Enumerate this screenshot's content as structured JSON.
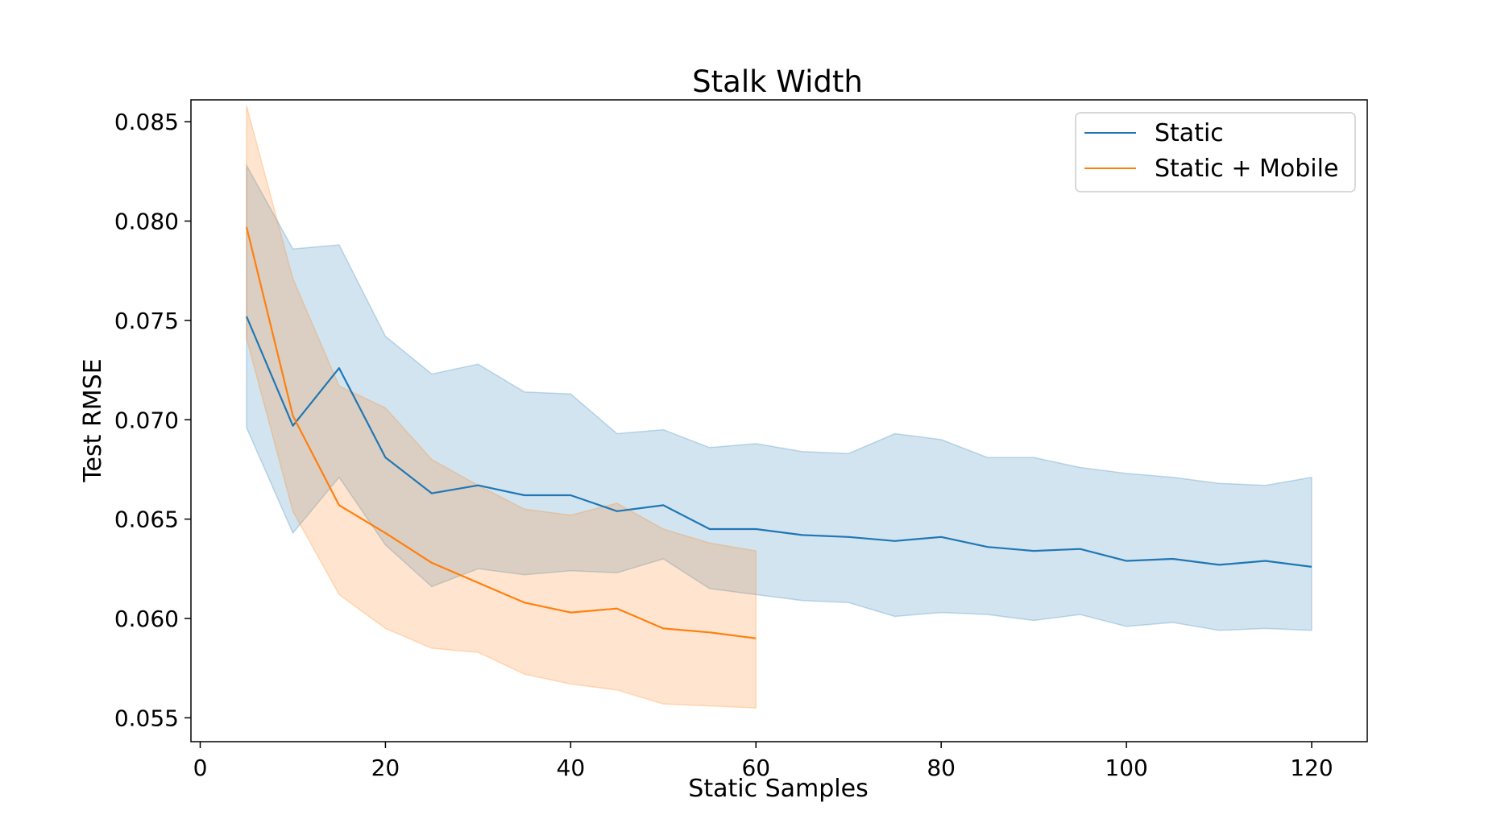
{
  "chart_data": {
    "type": "line",
    "title": "Stalk Width",
    "xlabel": "Static Samples",
    "ylabel": "Test RMSE",
    "xlim": [
      -1,
      126
    ],
    "ylim": [
      0.0538,
      0.0861
    ],
    "xticks": [
      0,
      20,
      40,
      60,
      80,
      100,
      120
    ],
    "xtick_labels": [
      "0",
      "20",
      "40",
      "60",
      "80",
      "100",
      "120"
    ],
    "yticks": [
      0.055,
      0.06,
      0.065,
      0.07,
      0.075,
      0.08,
      0.085
    ],
    "ytick_labels": [
      "0.055",
      "0.060",
      "0.065",
      "0.070",
      "0.075",
      "0.080",
      "0.085"
    ],
    "grid": false,
    "legend_position": "top-right",
    "series": [
      {
        "name": "Static",
        "color": "#1f77b4",
        "x": [
          5,
          10,
          15,
          20,
          25,
          30,
          35,
          40,
          45,
          50,
          55,
          60,
          65,
          70,
          75,
          80,
          85,
          90,
          95,
          100,
          105,
          110,
          115,
          120
        ],
        "y": [
          0.0752,
          0.0697,
          0.0726,
          0.0681,
          0.0663,
          0.0667,
          0.0662,
          0.0662,
          0.0654,
          0.0657,
          0.0645,
          0.0645,
          0.0642,
          0.0641,
          0.0639,
          0.0641,
          0.0636,
          0.0634,
          0.0635,
          0.0629,
          0.063,
          0.0627,
          0.0629,
          0.0626
        ],
        "upper": [
          0.0828,
          0.0786,
          0.0788,
          0.0742,
          0.0723,
          0.0728,
          0.0714,
          0.0713,
          0.0693,
          0.0695,
          0.0686,
          0.0688,
          0.0684,
          0.0683,
          0.0693,
          0.069,
          0.0681,
          0.0681,
          0.0676,
          0.0673,
          0.0671,
          0.0668,
          0.0667,
          0.0671
        ],
        "lower": [
          0.0696,
          0.0643,
          0.0671,
          0.0637,
          0.0616,
          0.0625,
          0.0622,
          0.0624,
          0.0623,
          0.063,
          0.0615,
          0.0612,
          0.0609,
          0.0608,
          0.0601,
          0.0603,
          0.0602,
          0.0599,
          0.0602,
          0.0596,
          0.0598,
          0.0594,
          0.0595,
          0.0594
        ]
      },
      {
        "name": "Static + Mobile",
        "color": "#ff7f0e",
        "x": [
          5,
          10,
          15,
          20,
          25,
          30,
          35,
          40,
          45,
          50,
          55,
          60
        ],
        "y": [
          0.0797,
          0.0702,
          0.0657,
          0.0643,
          0.0628,
          0.0618,
          0.0608,
          0.0603,
          0.0605,
          0.0595,
          0.0593,
          0.059
        ],
        "upper": [
          0.0858,
          0.0771,
          0.0717,
          0.0706,
          0.068,
          0.0667,
          0.0655,
          0.0652,
          0.0658,
          0.0645,
          0.0638,
          0.0634
        ],
        "lower": [
          0.0741,
          0.0654,
          0.0612,
          0.0595,
          0.0585,
          0.0583,
          0.0572,
          0.0567,
          0.0564,
          0.0557,
          0.0556,
          0.0555
        ]
      }
    ]
  }
}
